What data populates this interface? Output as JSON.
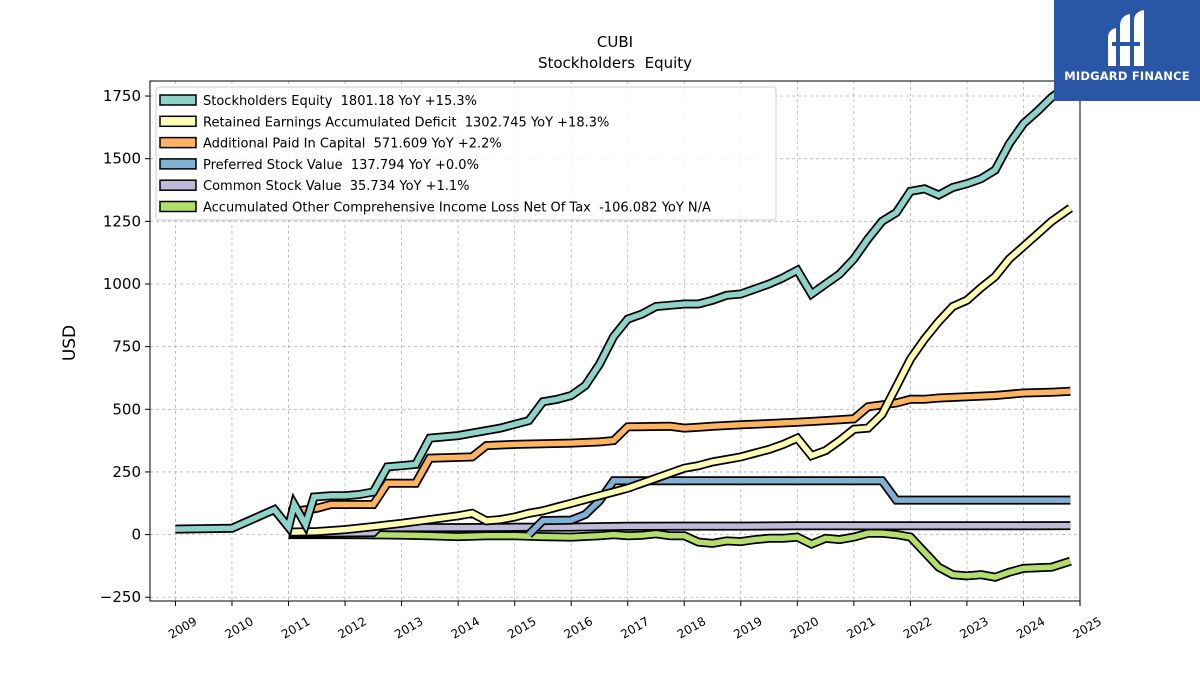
{
  "logo": {
    "text": "MIDGARD FINANCE"
  },
  "chart_data": {
    "type": "line",
    "title": "CUBI",
    "subtitle": "Stockholders  Equity",
    "ylabel": "USD",
    "xlabel": "",
    "xlim": [
      2008.55,
      2025.0
    ],
    "ylim": [
      -265,
      1810
    ],
    "x_ticks": [
      2009,
      2010,
      2011,
      2012,
      2013,
      2014,
      2015,
      2016,
      2017,
      2018,
      2019,
      2020,
      2021,
      2022,
      2023,
      2024,
      2025
    ],
    "x_tick_labels": [
      "2009",
      "2010",
      "2011",
      "2012",
      "2013",
      "2014",
      "2015",
      "2016",
      "2017",
      "2018",
      "2019",
      "2020",
      "2021",
      "2022",
      "2023",
      "2024",
      "2025"
    ],
    "y_ticks": [
      -250,
      0,
      250,
      500,
      750,
      1000,
      1250,
      1500,
      1750
    ],
    "y_tick_labels": [
      "−250",
      "0",
      "250",
      "500",
      "750",
      "1000",
      "1250",
      "1500",
      "1750"
    ],
    "grid": true,
    "legend_position": "top-left",
    "series": [
      {
        "name": "Stockholders Equity",
        "legend": "Stockholders Equity  1801.18 YoY +15.3%",
        "color": "#8dd3c7",
        "points": [
          [
            2009.0,
            22
          ],
          [
            2010.0,
            25
          ],
          [
            2010.75,
            100
          ],
          [
            2011.0,
            30
          ],
          [
            2011.1,
            120
          ],
          [
            2011.3,
            40
          ],
          [
            2011.45,
            150
          ],
          [
            2011.75,
            155
          ],
          [
            2012.0,
            155
          ],
          [
            2012.25,
            160
          ],
          [
            2012.5,
            170
          ],
          [
            2012.75,
            270
          ],
          [
            2013.0,
            275
          ],
          [
            2013.25,
            280
          ],
          [
            2013.5,
            385
          ],
          [
            2013.75,
            390
          ],
          [
            2014.0,
            395
          ],
          [
            2014.25,
            405
          ],
          [
            2014.5,
            415
          ],
          [
            2014.75,
            425
          ],
          [
            2015.0,
            440
          ],
          [
            2015.25,
            455
          ],
          [
            2015.5,
            530
          ],
          [
            2015.75,
            540
          ],
          [
            2016.0,
            555
          ],
          [
            2016.25,
            595
          ],
          [
            2016.5,
            680
          ],
          [
            2016.75,
            790
          ],
          [
            2017.0,
            860
          ],
          [
            2017.25,
            880
          ],
          [
            2017.5,
            910
          ],
          [
            2017.75,
            915
          ],
          [
            2018.0,
            920
          ],
          [
            2018.25,
            920
          ],
          [
            2018.5,
            935
          ],
          [
            2018.75,
            955
          ],
          [
            2019.0,
            960
          ],
          [
            2019.25,
            980
          ],
          [
            2019.5,
            1000
          ],
          [
            2019.75,
            1025
          ],
          [
            2020.0,
            1055
          ],
          [
            2020.25,
            960
          ],
          [
            2020.5,
            1000
          ],
          [
            2020.75,
            1040
          ],
          [
            2021.0,
            1100
          ],
          [
            2021.25,
            1180
          ],
          [
            2021.5,
            1250
          ],
          [
            2021.75,
            1285
          ],
          [
            2022.0,
            1370
          ],
          [
            2022.25,
            1380
          ],
          [
            2022.5,
            1355
          ],
          [
            2022.75,
            1385
          ],
          [
            2023.0,
            1400
          ],
          [
            2023.25,
            1420
          ],
          [
            2023.5,
            1455
          ],
          [
            2023.75,
            1560
          ],
          [
            2024.0,
            1640
          ],
          [
            2024.25,
            1690
          ],
          [
            2024.5,
            1745
          ],
          [
            2024.83,
            1801.18
          ]
        ]
      },
      {
        "name": "Retained Earnings Accumulated Deficit",
        "legend": "Retained Earnings Accumulated Deficit  1302.745 YoY +18.3%",
        "color": "#ffffb3",
        "points": [
          [
            2011.0,
            10
          ],
          [
            2011.5,
            12
          ],
          [
            2012.0,
            20
          ],
          [
            2012.5,
            32
          ],
          [
            2013.0,
            45
          ],
          [
            2013.5,
            60
          ],
          [
            2014.0,
            75
          ],
          [
            2014.25,
            85
          ],
          [
            2014.5,
            55
          ],
          [
            2014.75,
            60
          ],
          [
            2015.0,
            70
          ],
          [
            2015.25,
            85
          ],
          [
            2015.5,
            95
          ],
          [
            2015.75,
            110
          ],
          [
            2016.0,
            125
          ],
          [
            2016.25,
            140
          ],
          [
            2016.5,
            155
          ],
          [
            2016.75,
            170
          ],
          [
            2017.0,
            185
          ],
          [
            2017.25,
            205
          ],
          [
            2017.5,
            225
          ],
          [
            2017.75,
            245
          ],
          [
            2018.0,
            265
          ],
          [
            2018.25,
            275
          ],
          [
            2018.5,
            290
          ],
          [
            2018.75,
            300
          ],
          [
            2019.0,
            310
          ],
          [
            2019.25,
            325
          ],
          [
            2019.5,
            340
          ],
          [
            2019.75,
            360
          ],
          [
            2020.0,
            385
          ],
          [
            2020.25,
            315
          ],
          [
            2020.5,
            335
          ],
          [
            2020.75,
            375
          ],
          [
            2021.0,
            420
          ],
          [
            2021.25,
            425
          ],
          [
            2021.5,
            480
          ],
          [
            2021.75,
            590
          ],
          [
            2022.0,
            700
          ],
          [
            2022.25,
            780
          ],
          [
            2022.5,
            850
          ],
          [
            2022.75,
            910
          ],
          [
            2023.0,
            935
          ],
          [
            2023.25,
            985
          ],
          [
            2023.5,
            1030
          ],
          [
            2023.75,
            1100
          ],
          [
            2024.0,
            1150
          ],
          [
            2024.25,
            1200
          ],
          [
            2024.5,
            1250
          ],
          [
            2024.83,
            1302.745
          ]
        ]
      },
      {
        "name": "Additional Paid In Capital",
        "legend": "Additional Paid In Capital  571.609 YoY +2.2%",
        "color": "#fdb462",
        "points": [
          [
            2011.0,
            90
          ],
          [
            2011.5,
            105
          ],
          [
            2011.75,
            120
          ],
          [
            2012.5,
            120
          ],
          [
            2012.75,
            205
          ],
          [
            2013.25,
            205
          ],
          [
            2013.5,
            305
          ],
          [
            2014.25,
            310
          ],
          [
            2014.5,
            355
          ],
          [
            2015.0,
            360
          ],
          [
            2016.0,
            365
          ],
          [
            2016.5,
            370
          ],
          [
            2016.75,
            375
          ],
          [
            2017.0,
            430
          ],
          [
            2017.75,
            432
          ],
          [
            2018.0,
            425
          ],
          [
            2018.25,
            428
          ],
          [
            2018.5,
            432
          ],
          [
            2019.0,
            438
          ],
          [
            2020.0,
            448
          ],
          [
            2020.5,
            455
          ],
          [
            2021.0,
            462
          ],
          [
            2021.25,
            510
          ],
          [
            2021.75,
            525
          ],
          [
            2022.0,
            540
          ],
          [
            2022.25,
            540
          ],
          [
            2022.5,
            545
          ],
          [
            2023.0,
            550
          ],
          [
            2023.5,
            555
          ],
          [
            2024.0,
            565
          ],
          [
            2024.5,
            568
          ],
          [
            2024.83,
            571.609
          ]
        ]
      },
      {
        "name": "Preferred Stock Value",
        "legend": "Preferred Stock Value  137.794 YoY +0.0%",
        "color": "#80b1d3",
        "points": [
          [
            2015.25,
            0
          ],
          [
            2015.5,
            56
          ],
          [
            2016.0,
            58
          ],
          [
            2016.25,
            80
          ],
          [
            2016.5,
            135
          ],
          [
            2016.75,
            215
          ],
          [
            2021.5,
            215
          ],
          [
            2021.75,
            137.794
          ],
          [
            2024.83,
            137.794
          ]
        ]
      },
      {
        "name": "Common Stock Value",
        "legend": "Common Stock Value  35.734 YoY +1.1%",
        "color": "#bebada",
        "points": [
          [
            2011.0,
            5
          ],
          [
            2012.5,
            8
          ],
          [
            2012.6,
            30
          ],
          [
            2012.75,
            28
          ],
          [
            2014.0,
            28
          ],
          [
            2015.0,
            29
          ],
          [
            2016.0,
            30
          ],
          [
            2017.0,
            33
          ],
          [
            2018.0,
            34
          ],
          [
            2019.0,
            34
          ],
          [
            2020.0,
            35
          ],
          [
            2021.0,
            35
          ],
          [
            2022.0,
            35
          ],
          [
            2023.0,
            35.3
          ],
          [
            2024.0,
            35.5
          ],
          [
            2024.83,
            35.734
          ]
        ]
      },
      {
        "name": "Accumulated Other Comprehensive Income Loss Net Of Tax",
        "legend": "Accumulated Other Comprehensive Income Loss Net Of Tax  -106.082 YoY N/A",
        "color": "#b3de69",
        "points": [
          [
            2011.0,
            0
          ],
          [
            2012.0,
            0
          ],
          [
            2013.0,
            -2
          ],
          [
            2013.5,
            -5
          ],
          [
            2014.0,
            -8
          ],
          [
            2014.5,
            -5
          ],
          [
            2015.0,
            -5
          ],
          [
            2015.5,
            -8
          ],
          [
            2016.0,
            -10
          ],
          [
            2016.5,
            -5
          ],
          [
            2016.75,
            0
          ],
          [
            2017.0,
            -5
          ],
          [
            2017.25,
            -3
          ],
          [
            2017.5,
            3
          ],
          [
            2017.75,
            -5
          ],
          [
            2018.0,
            -5
          ],
          [
            2018.25,
            -30
          ],
          [
            2018.5,
            -35
          ],
          [
            2018.75,
            -25
          ],
          [
            2019.0,
            -28
          ],
          [
            2019.25,
            -20
          ],
          [
            2019.5,
            -15
          ],
          [
            2019.75,
            -15
          ],
          [
            2020.0,
            -10
          ],
          [
            2020.25,
            -38
          ],
          [
            2020.5,
            -15
          ],
          [
            2020.75,
            -20
          ],
          [
            2021.0,
            -10
          ],
          [
            2021.25,
            5
          ],
          [
            2021.5,
            5
          ],
          [
            2021.75,
            0
          ],
          [
            2022.0,
            -10
          ],
          [
            2022.25,
            -70
          ],
          [
            2022.5,
            -130
          ],
          [
            2022.75,
            -160
          ],
          [
            2023.0,
            -165
          ],
          [
            2023.25,
            -160
          ],
          [
            2023.5,
            -170
          ],
          [
            2023.75,
            -150
          ],
          [
            2024.0,
            -135
          ],
          [
            2024.25,
            -132
          ],
          [
            2024.5,
            -130
          ],
          [
            2024.83,
            -106.082
          ]
        ]
      }
    ]
  }
}
